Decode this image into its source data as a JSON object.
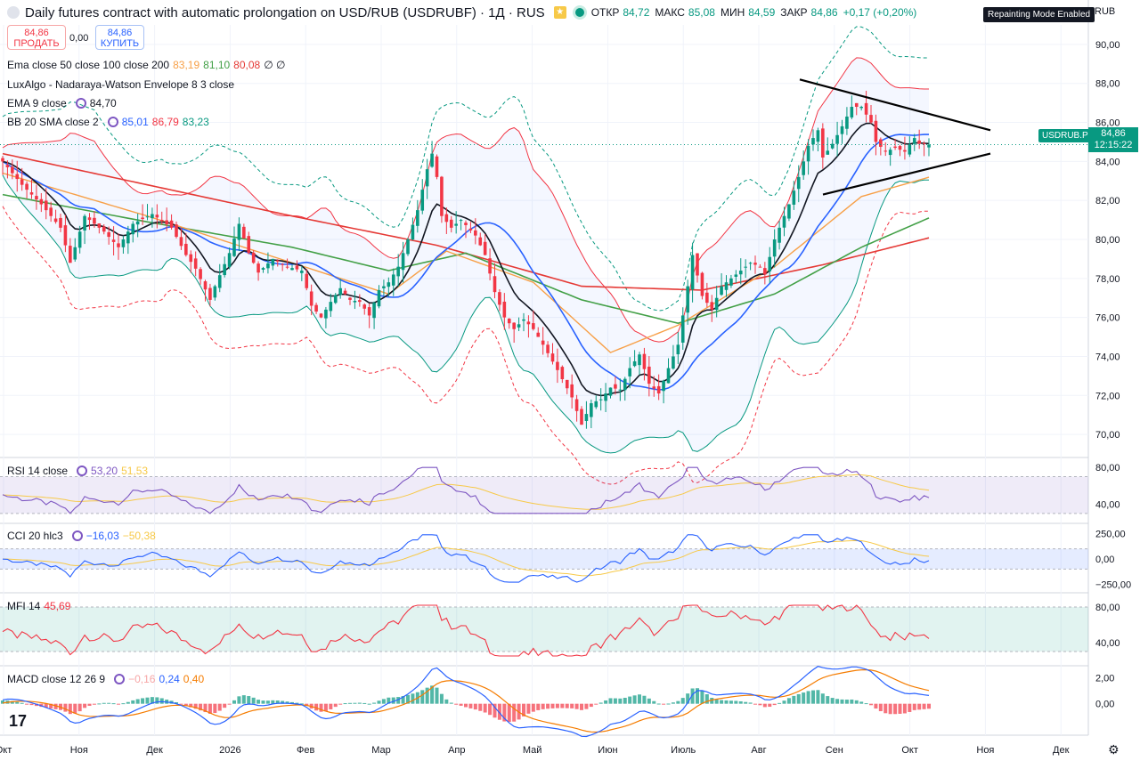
{
  "header": {
    "title": "Daily futures contract with automatic prolongation on USD/RUB (USDRUBF) · 1Д · RUS",
    "o_label": "ОТКР",
    "o_val": "84,72",
    "h_label": "МАКС",
    "h_val": "85,08",
    "l_label": "МИН",
    "l_val": "84,59",
    "c_label": "ЗАКР",
    "c_val": "84,86",
    "change": "+0,17 (+0,20%)"
  },
  "trade": {
    "sell_price": "84,86",
    "sell_label": "ПРОДАТЬ",
    "spread": "0,00",
    "buy_price": "84,86",
    "buy_label": "КУПИТЬ"
  },
  "legends": {
    "ema": {
      "label": "Ema close 50 close 100 close 200",
      "v1": "83,19",
      "v2": "81,10",
      "v3": "80,08",
      "v4": "∅ ∅"
    },
    "luxalgo": {
      "label": "LuxAlgo - Nadaraya-Watson Envelope 8 3 close"
    },
    "ema9": {
      "label": "EMA 9 close",
      "v1": "84,70"
    },
    "bb": {
      "label": "BB 20 SMA close 2",
      "v1": "85,01",
      "v2": "86,79",
      "v3": "83,23"
    },
    "rsi": {
      "label": "RSI 14 close",
      "v1": "53,20",
      "v2": "51,53"
    },
    "cci": {
      "label": "CCI 20 hlc3",
      "v1": "−16,03",
      "v2": "−50,38"
    },
    "mfi": {
      "label": "MFI 14",
      "v1": "45,69"
    },
    "macd": {
      "label": "MACD close 12 26 9",
      "v1": "−0,16",
      "v2": "0,24",
      "v3": "0,40"
    }
  },
  "badges": {
    "repaint": "Repainting Mode Enabled",
    "currency": "RUB",
    "symbol": "USDRUB.P",
    "last_price": "84,86",
    "countdown": "12:15:22"
  },
  "colors": {
    "up": "#089981",
    "down": "#f23645",
    "ema50": "#f7a048",
    "ema100": "#43a047",
    "ema200": "#e53935",
    "ema9": "#131722",
    "bb_basis": "#2962ff",
    "bb_band": "#f23645",
    "envelope": "#089981",
    "rsi": "#7e57c2",
    "cci": "#2962ff",
    "mfi": "#f23645",
    "signal": "#f7c948",
    "macd": "#2962ff",
    "macd_signal": "#f57c00"
  },
  "chart_data": {
    "type": "candlestick",
    "y_axis": {
      "ticks": [
        "90,00",
        "88,00",
        "86,00",
        "84,00",
        "82,00",
        "80,00",
        "78,00",
        "76,00",
        "74,00",
        "72,00",
        "70,00"
      ],
      "ylim": [
        69,
        91
      ]
    },
    "x_axis": {
      "ticks": [
        "Окт",
        "Ноя",
        "Дек",
        "2026",
        "Фев",
        "Мар",
        "Апр",
        "Май",
        "Июн",
        "Июль",
        "Авг",
        "Сен",
        "Окт",
        "Ноя",
        "Дек"
      ]
    },
    "price_path": [
      [
        0,
        84.0
      ],
      [
        4,
        82.8
      ],
      [
        8,
        81.8
      ],
      [
        12,
        80.6
      ],
      [
        14,
        78.8
      ],
      [
        17,
        81.2
      ],
      [
        21,
        80.4
      ],
      [
        24,
        79.6
      ],
      [
        27,
        80.8
      ],
      [
        31,
        81.3
      ],
      [
        35,
        80.6
      ],
      [
        38,
        79.2
      ],
      [
        40,
        78.5
      ],
      [
        43,
        76.9
      ],
      [
        44,
        77.6
      ],
      [
        47,
        79.3
      ],
      [
        49,
        80.8
      ],
      [
        51,
        79.3
      ],
      [
        53,
        78.3
      ],
      [
        56,
        79.0
      ],
      [
        59,
        78.6
      ],
      [
        62,
        78.4
      ],
      [
        64,
        76.6
      ],
      [
        66,
        76.0
      ],
      [
        68,
        76.8
      ],
      [
        70,
        77.5
      ],
      [
        72,
        76.9
      ],
      [
        74,
        76.8
      ],
      [
        76,
        76.1
      ],
      [
        78,
        77.4
      ],
      [
        80,
        77.8
      ],
      [
        82,
        78.6
      ],
      [
        84,
        80.0
      ],
      [
        86,
        81.5
      ],
      [
        88,
        83.6
      ],
      [
        89,
        84.4
      ],
      [
        90,
        83.2
      ],
      [
        91,
        81.2
      ],
      [
        93,
        80.6
      ],
      [
        95,
        81.0
      ],
      [
        98,
        80.2
      ],
      [
        100,
        79.2
      ],
      [
        102,
        77.3
      ],
      [
        104,
        76.0
      ],
      [
        106,
        75.4
      ],
      [
        108,
        75.9
      ],
      [
        110,
        75.4
      ],
      [
        112,
        74.6
      ],
      [
        115,
        73.3
      ],
      [
        118,
        71.9
      ],
      [
        120,
        70.5
      ],
      [
        122,
        71.6
      ],
      [
        124,
        71.8
      ],
      [
        126,
        72.4
      ],
      [
        128,
        72.3
      ],
      [
        130,
        73.4
      ],
      [
        132,
        74.1
      ],
      [
        134,
        72.6
      ],
      [
        136,
        72.1
      ],
      [
        138,
        73.4
      ],
      [
        140,
        74.6
      ],
      [
        141,
        76.1
      ],
      [
        142,
        77.6
      ],
      [
        143,
        79.2
      ],
      [
        145,
        77.1
      ],
      [
        147,
        76.4
      ],
      [
        149,
        77.6
      ],
      [
        152,
        78.2
      ],
      [
        155,
        78.8
      ],
      [
        157,
        78.6
      ],
      [
        158,
        78.2
      ],
      [
        160,
        80.0
      ],
      [
        163,
        81.8
      ],
      [
        165,
        83.2
      ],
      [
        167,
        84.8
      ],
      [
        169,
        85.6
      ],
      [
        170,
        84.2
      ],
      [
        172,
        84.9
      ],
      [
        174,
        85.8
      ],
      [
        176,
        86.8
      ],
      [
        178,
        86.8
      ],
      [
        180,
        86.0
      ],
      [
        181,
        85.0
      ],
      [
        183,
        84.5
      ],
      [
        185,
        84.7
      ],
      [
        187,
        84.5
      ],
      [
        189,
        85.2
      ],
      [
        190,
        84.9
      ],
      [
        192,
        84.86
      ]
    ],
    "ema50": [
      [
        0,
        83.4
      ],
      [
        30,
        81.2
      ],
      [
        60,
        78.8
      ],
      [
        80,
        77.2
      ],
      [
        92,
        79.4
      ],
      [
        110,
        77.8
      ],
      [
        126,
        74.2
      ],
      [
        140,
        75.6
      ],
      [
        160,
        78.6
      ],
      [
        178,
        82.2
      ],
      [
        192,
        83.19
      ]
    ],
    "ema100": [
      [
        0,
        82.3
      ],
      [
        30,
        80.9
      ],
      [
        60,
        79.6
      ],
      [
        80,
        78.4
      ],
      [
        96,
        79.3
      ],
      [
        120,
        76.9
      ],
      [
        140,
        75.7
      ],
      [
        160,
        77.2
      ],
      [
        178,
        79.6
      ],
      [
        192,
        81.1
      ]
    ],
    "ema200": [
      [
        0,
        84.4
      ],
      [
        30,
        82.8
      ],
      [
        60,
        81.2
      ],
      [
        90,
        79.7
      ],
      [
        120,
        77.6
      ],
      [
        145,
        77.4
      ],
      [
        170,
        78.7
      ],
      [
        192,
        80.08
      ]
    ],
    "rsi": {
      "ylim": [
        25,
        85
      ],
      "ticks": [
        "80,00",
        "40,00"
      ],
      "last": 53.2,
      "signal_last": 51.53
    },
    "cci": {
      "ylim": [
        -300,
        300
      ],
      "ticks": [
        "250,00",
        "0,00",
        "−250,00"
      ],
      "last": -16.03,
      "signal_last": -50.38
    },
    "mfi": {
      "ylim": [
        20,
        90
      ],
      "ticks": [
        "80,00",
        "40,00"
      ],
      "last": 45.69
    },
    "macd": {
      "ylim": [
        -2,
        2.5
      ],
      "ticks": [
        "2,00",
        "0,00"
      ],
      "hist_last": -0.16,
      "macd_last": 0.24,
      "signal_last": 0.4
    }
  }
}
